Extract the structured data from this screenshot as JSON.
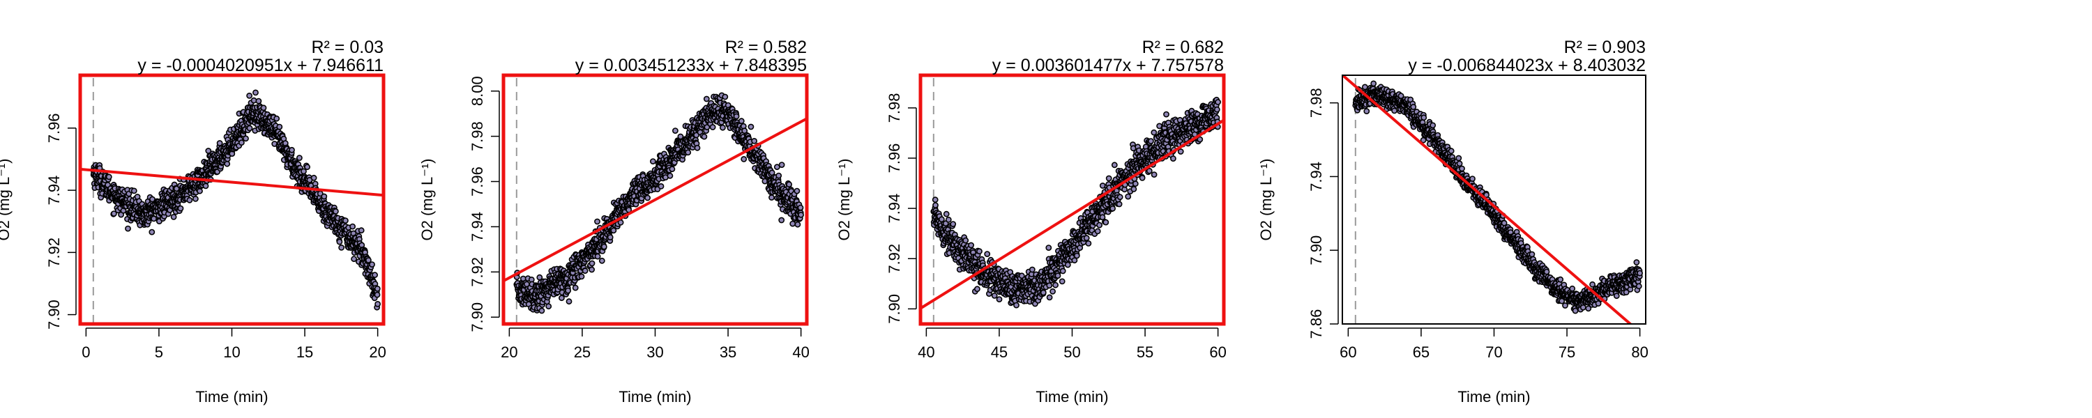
{
  "chart_data": [
    {
      "type": "scatter",
      "xlabel": "Time (min)",
      "ylabel": "O2 (mg L⁻¹)",
      "r2_label": "R² = 0.03",
      "equation": "y = -0.0004020951x + 7.946611",
      "slope": -0.0004020951,
      "intercept": 7.946611,
      "xlim": [
        -0.4,
        20.4
      ],
      "ylim": [
        7.897,
        7.977
      ],
      "xticks": [
        0,
        5,
        10,
        15,
        20
      ],
      "yticks": [
        7.9,
        7.92,
        7.94,
        7.96
      ],
      "window_start": 0.5,
      "highlighted": true,
      "series_trend": {
        "x": [
          0.5,
          2,
          4,
          6,
          8,
          10,
          11.5,
          13,
          14.5,
          16,
          17.5,
          19,
          20
        ],
        "y": [
          7.946,
          7.938,
          7.932,
          7.937,
          7.944,
          7.955,
          7.966,
          7.958,
          7.946,
          7.936,
          7.928,
          7.92,
          7.906
        ]
      },
      "noise": 0.004
    },
    {
      "type": "scatter",
      "xlabel": "Time (min)",
      "ylabel": "O2 (mg L⁻¹)",
      "r2_label": "R² = 0.582",
      "equation": "y = 0.003451233x + 7.848395",
      "slope": 0.003451233,
      "intercept": 7.848395,
      "xlim": [
        19.6,
        40.4
      ],
      "ylim": [
        7.897,
        8.007
      ],
      "xticks": [
        20,
        25,
        30,
        35,
        40
      ],
      "yticks": [
        7.9,
        7.92,
        7.94,
        7.96,
        7.98,
        8.0
      ],
      "window_start": 20.5,
      "highlighted": true,
      "series_trend": {
        "x": [
          20.5,
          22,
          24,
          26,
          28,
          30,
          32,
          34,
          35,
          36,
          38,
          40
        ],
        "y": [
          7.912,
          7.91,
          7.918,
          7.932,
          7.95,
          7.962,
          7.976,
          7.992,
          7.99,
          7.98,
          7.96,
          7.945
        ]
      },
      "noise": 0.006
    },
    {
      "type": "scatter",
      "xlabel": "Time (min)",
      "ylabel": "O2 (mg L⁻¹)",
      "r2_label": "R² = 0.682",
      "equation": "y = 0.003601477x + 7.757578",
      "slope": 0.003601477,
      "intercept": 7.757578,
      "xlim": [
        39.6,
        60.4
      ],
      "ylim": [
        7.894,
        7.993
      ],
      "xticks": [
        40,
        45,
        50,
        55,
        60
      ],
      "yticks": [
        7.9,
        7.92,
        7.94,
        7.96,
        7.98
      ],
      "window_start": 40.5,
      "highlighted": true,
      "series_trend": {
        "x": [
          40.5,
          42,
          44,
          46,
          48,
          50,
          52,
          54,
          56,
          58,
          60
        ],
        "y": [
          7.938,
          7.925,
          7.914,
          7.908,
          7.91,
          7.925,
          7.94,
          7.955,
          7.965,
          7.972,
          7.978
        ]
      },
      "noise": 0.006
    },
    {
      "type": "scatter",
      "xlabel": "Time (min)",
      "ylabel": "O2 (mg L⁻¹)",
      "r2_label": "R² = 0.903",
      "equation": "y = -0.006844023x + 8.403032",
      "slope": -0.006844023,
      "intercept": 8.403032,
      "xlim": [
        59.6,
        80.4
      ],
      "ylim": [
        7.86,
        7.995
      ],
      "xticks": [
        60,
        65,
        70,
        75,
        80
      ],
      "yticks": [
        7.86,
        7.9,
        7.94,
        7.98
      ],
      "window_start": 60.5,
      "highlighted": false,
      "series_trend": {
        "x": [
          60.5,
          62,
          64,
          66,
          68,
          70,
          72,
          74,
          76,
          78,
          80
        ],
        "y": [
          7.98,
          7.985,
          7.978,
          7.96,
          7.938,
          7.92,
          7.898,
          7.88,
          7.872,
          7.88,
          7.887
        ]
      },
      "noise": 0.005
    }
  ],
  "colors": {
    "point_edge": "#000000",
    "point_fill": "#8f86b5",
    "fit_line": "#ee1111",
    "frame_highlight": "#ee1111",
    "frame_plain": "#000000",
    "window_marker": "#9a9a9a"
  }
}
